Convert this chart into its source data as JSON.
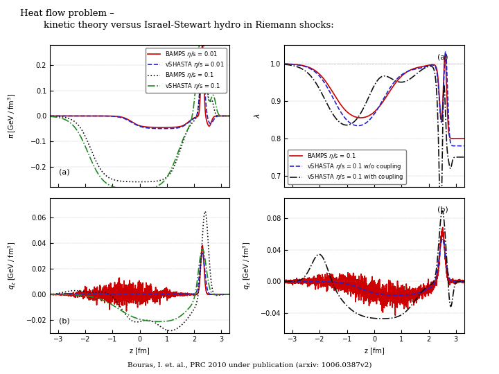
{
  "title_line1": "Heat flow problem –",
  "title_line2": "        kinetic theory versus Israel-Stewart hydro in Riemann shocks:",
  "caption": "Bouras, I. et. al., PRC 2010 under publication (arxiv: 1006.0387v2)",
  "bg_color": "#ffffff",
  "panel_bg": "#ffffff",
  "ylabel_tl": "π  [GeV / fm³]",
  "ylabel_bl": "q₂ [GeV / fm³]",
  "ylabel_tr": "λ",
  "ylabel_br": "q₂ [GeV / fm³]",
  "xlabel": "z [fm]",
  "xlim": [
    -3.3,
    3.3
  ],
  "ylim_tl": [
    -0.28,
    0.28
  ],
  "yticks_tl": [
    -0.2,
    -0.1,
    0.0,
    0.1,
    0.2
  ],
  "ylim_bl": [
    -0.03,
    0.075
  ],
  "yticks_bl": [
    -0.02,
    0.0,
    0.02,
    0.04,
    0.06
  ],
  "ylim_tr": [
    0.67,
    1.05
  ],
  "yticks_tr": [
    0.7,
    0.8,
    0.9,
    1.0
  ],
  "ylim_br": [
    -0.065,
    0.105
  ],
  "yticks_br": [
    -0.04,
    0.0,
    0.04,
    0.08
  ],
  "xticks": [
    -3,
    -2,
    -1,
    0,
    1,
    2,
    3
  ]
}
